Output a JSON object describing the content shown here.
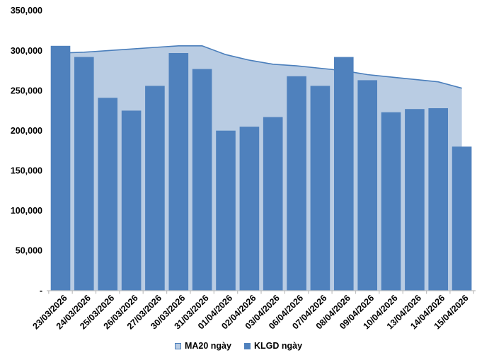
{
  "chart_data": {
    "type": "bar",
    "title": "",
    "xlabel": "",
    "ylabel": "",
    "ylim": [
      0,
      350000
    ],
    "grid": false,
    "legend_position": "bottom",
    "categories": [
      "23/03/2026",
      "24/03/2026",
      "25/03/2026",
      "26/03/2026",
      "27/03/2026",
      "30/03/2026",
      "31/03/2026",
      "01/04/2026",
      "02/04/2026",
      "03/04/2026",
      "06/04/2026",
      "07/04/2026",
      "08/04/2026",
      "09/04/2026",
      "10/04/2026",
      "13/04/2026",
      "14/04/2026",
      "15/04/2026"
    ],
    "series": [
      {
        "name": "MA20 ngày",
        "type": "area",
        "fill_color": "#B9CCE3",
        "line_color": "#4A7EBB",
        "values": [
          297000,
          298000,
          300000,
          302000,
          304000,
          306000,
          306000,
          295000,
          288000,
          283000,
          281000,
          278000,
          275000,
          270000,
          267000,
          264000,
          261000,
          253000
        ]
      },
      {
        "name": "KLGD ngày",
        "type": "bar",
        "fill_color": "#4F81BD",
        "values": [
          306000,
          292000,
          241000,
          225000,
          256000,
          297000,
          277000,
          200000,
          205000,
          217000,
          268000,
          256000,
          292000,
          263000,
          223000,
          227000,
          228000,
          180000
        ]
      }
    ],
    "y_ticks": [
      {
        "value": 350000,
        "label": "350,000"
      },
      {
        "value": 300000,
        "label": "300,000"
      },
      {
        "value": 250000,
        "label": "250,000"
      },
      {
        "value": 200000,
        "label": "200,000"
      },
      {
        "value": 150000,
        "label": "150,000"
      },
      {
        "value": 100000,
        "label": "100,000"
      },
      {
        "value": 50000,
        "label": "50,000"
      },
      {
        "value": 0,
        "label": "-"
      }
    ],
    "axis_color": "#BFBFBF",
    "text_color": "#000000"
  },
  "legend": {
    "items": [
      {
        "label": "MA20 ngày"
      },
      {
        "label": "KLGD ngày"
      }
    ]
  }
}
